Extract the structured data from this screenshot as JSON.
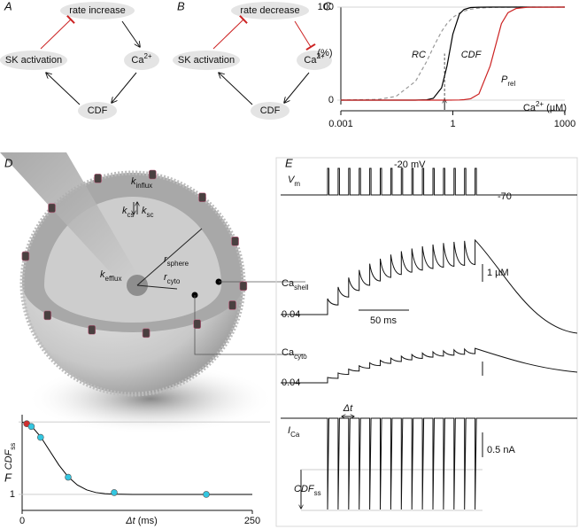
{
  "panel_labels": [
    "A",
    "B",
    "C",
    "D",
    "E",
    "F"
  ],
  "diagram_a": {
    "top": "rate increase",
    "left": "SK activation",
    "right": {
      "main": "Ca",
      "sup": "2+"
    },
    "bottom": "CDF"
  },
  "diagram_b": {
    "top": "rate decrease",
    "left": "SK activation",
    "right": {
      "main": "Ca",
      "sup": "2+"
    },
    "bottom": "CDF"
  },
  "model_d": {
    "k_influx": {
      "main": "k",
      "sub": "influx"
    },
    "k_cs": {
      "main": "k",
      "sub": "cs"
    },
    "k_sc": {
      "main": "k",
      "sub": "sc"
    },
    "r_sphere": {
      "main": "r",
      "sub": "sphere"
    },
    "r_cyto": {
      "main": "r",
      "sub": "cyto"
    },
    "k_efflux": {
      "main": "k",
      "sub": "efflux"
    }
  },
  "traces_e": {
    "vm": {
      "main": "V",
      "sub": "m"
    },
    "vm_high": "-20 mV",
    "vm_rest": "-70",
    "ca_shell": {
      "main": "Ca",
      "sub": "shell"
    },
    "ca_shell_base": "0.04",
    "scale_conc": "1 µM",
    "scale_time": "50 ms",
    "ca_cyto": {
      "main": "Ca",
      "sub": "cyto"
    },
    "ca_cyto_base": "0.04",
    "ica": {
      "main": "I",
      "sub": "Ca"
    },
    "dt": "Δt",
    "scale_current": "0.5 nA",
    "cdf_ss": {
      "main": "CDF",
      "sub": "ss"
    }
  },
  "chart_data": [
    {
      "type": "line",
      "y_label": "(%)",
      "x_label": {
        "main": "Ca",
        "sup": "2+",
        "unit": " (µM)"
      },
      "log_x": true,
      "xlim": [
        0.001,
        1000
      ],
      "xticks": [
        0.001,
        1,
        1000
      ],
      "ylim": [
        0,
        100
      ],
      "yticks": [
        0,
        100
      ],
      "marker_x": 0.6,
      "x": [
        0.001,
        0.01,
        0.03,
        0.1,
        0.2,
        0.3,
        0.5,
        0.7,
        1,
        1.5,
        2,
        3,
        5,
        10,
        20,
        30,
        50,
        100,
        1000
      ],
      "series": [
        {
          "name": "RC",
          "color": "#9a9a9a",
          "dashed": true,
          "values": [
            0.03,
            0.8,
            4.0,
            20.2,
            41.7,
            56.8,
            73.9,
            82.4,
            88.9,
            93.6,
            95.8,
            97.7,
            98.9,
            99.6,
            99.9,
            99.9,
            100,
            100,
            100
          ]
        },
        {
          "name": "CDF",
          "color": "#000000",
          "values": [
            0,
            0,
            0,
            0.02,
            0.4,
            1.9,
            13.2,
            36.9,
            70.9,
            92.5,
            97.5,
            99.5,
            99.9,
            100,
            100,
            100,
            100,
            100,
            100
          ]
        },
        {
          "name": {
            "main": "P",
            "sub": "rel"
          },
          "color": "#cc2222",
          "values": [
            0,
            0,
            0,
            0,
            0,
            0,
            0,
            0,
            0.06,
            0.2,
            0.5,
            1.5,
            6.7,
            36.7,
            82.2,
            94.0,
            98.6,
            99.8,
            100
          ]
        }
      ]
    },
    {
      "type": "line",
      "x_label": {
        "main": "Δt",
        "unit": " (ms)"
      },
      "y_label": {
        "main": "CDF",
        "sub": "ss"
      },
      "xlim": [
        0,
        250
      ],
      "xticks": [
        0,
        250
      ],
      "ylim": [
        0.98,
        1.88
      ],
      "yticks": [
        1
      ],
      "ref_line": 1.8,
      "x": [
        0,
        10,
        20,
        30,
        40,
        50,
        60,
        70,
        80,
        90,
        100,
        120,
        150,
        200,
        250
      ],
      "values": [
        1.8,
        1.756,
        1.638,
        1.48,
        1.323,
        1.194,
        1.104,
        1.05,
        1.021,
        1.008,
        1.003,
        1.0,
        1.0,
        1.0,
        1.0
      ],
      "color": "#000000",
      "points": {
        "x": [
          5,
          10,
          20,
          50,
          100,
          200
        ],
        "values": [
          1.78,
          1.75,
          1.63,
          1.19,
          1.02,
          1.0
        ],
        "colors": [
          "#d03030",
          "#33c6e0",
          "#33c6e0",
          "#33c6e0",
          "#33c6e0",
          "#33c6e0"
        ]
      }
    }
  ]
}
